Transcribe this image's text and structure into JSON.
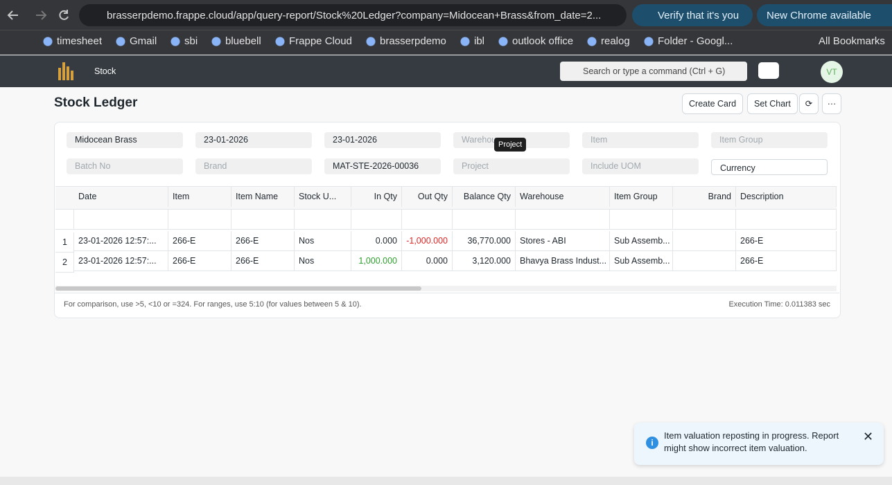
{
  "browser": {
    "url": "brasserpdemo.frappe.cloud/app/query-report/Stock%20Ledger?company=Midocean+Brass&from_date=2...",
    "verify": "Verify that it's you",
    "update": "New Chrome available",
    "bookmarks": [
      "timesheet",
      "Gmail",
      "sbi",
      "bluebell",
      "Frappe Cloud",
      "brasserpdemo",
      "ibl",
      "outlook office",
      "realog",
      "Folder - Googl..."
    ],
    "all_bookmarks": "All Bookmarks"
  },
  "navbar": {
    "breadcrumb": "Stock",
    "search": "Search or type a command (Ctrl + G)",
    "avatar": "VT"
  },
  "page": {
    "title": "Stock Ledger",
    "buttons": [
      "Create Card",
      "Set Chart"
    ]
  },
  "filters": [
    {
      "value": "Midocean Brass"
    },
    {
      "value": "23-01-2026"
    },
    {
      "value": "23-01-2026"
    },
    {
      "placeholder": "Warehouse"
    },
    {
      "placeholder": "Item"
    },
    {
      "placeholder": "Item Group"
    },
    {
      "placeholder": "Batch No"
    },
    {
      "placeholder": "Brand"
    },
    {
      "value": "MAT-STE-2026-00036"
    },
    {
      "placeholder": "Project"
    },
    {
      "placeholder": "Include UOM"
    },
    {
      "value": "Currency"
    }
  ],
  "tooltip": "Project",
  "table": {
    "columns": [
      "Date",
      "Item",
      "Item Name",
      "Stock U...",
      "In Qty",
      "Out Qty",
      "Balance Qty",
      "Warehouse",
      "Item Group",
      "Brand",
      "Description"
    ],
    "rows": [
      {
        "index": "1",
        "cells": [
          "23-01-2026 12:57:...",
          "266-E",
          "266-E",
          "Nos",
          "0.000",
          "-1,000.000",
          "36,770.000",
          "Stores - ABI",
          "Sub Assemb...",
          "",
          "266-E"
        ]
      },
      {
        "index": "2",
        "cells": [
          "23-01-2026 12:57:...",
          "266-E",
          "266-E",
          "Nos",
          "1,000.000",
          "0.000",
          "3,120.000",
          "Bhavya Brass Indust...",
          "Sub Assemb...",
          "",
          "266-E"
        ]
      }
    ]
  },
  "footer": {
    "hint": "For comparison, use >5, <10 or =324. For ranges, use 5:10 (for values between 5 & 10).",
    "execution": "Execution Time: 0.011383 sec"
  },
  "toast": "Item valuation reposting in progress. Report might show incorrect item valuation."
}
